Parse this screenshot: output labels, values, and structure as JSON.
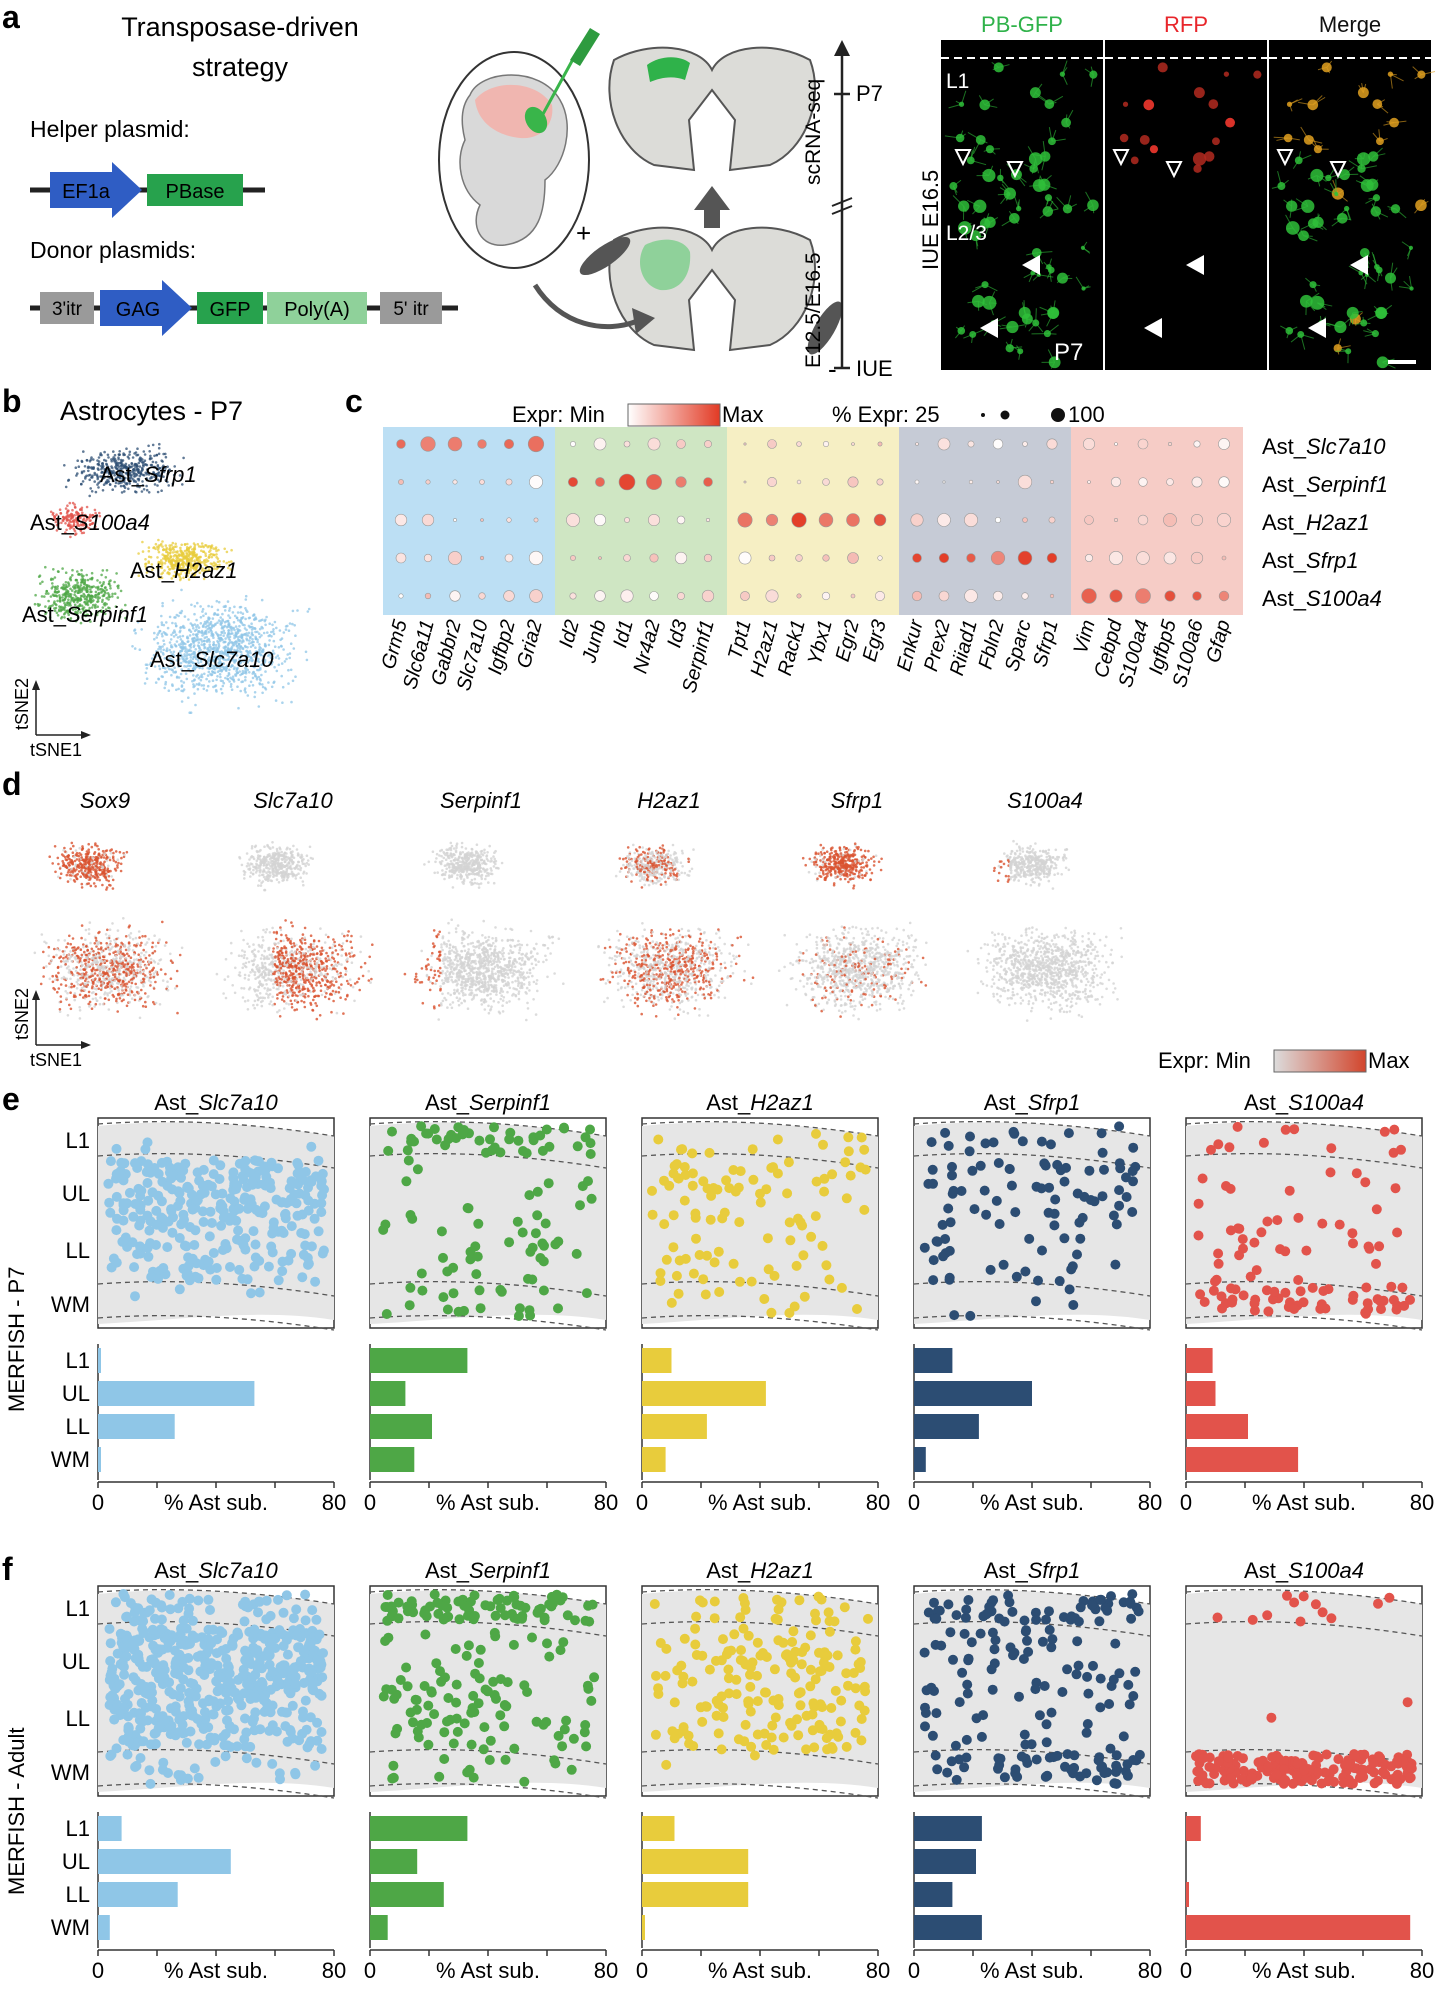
{
  "panel_letters": {
    "a": "a",
    "b": "b",
    "c": "c",
    "d": "d",
    "e": "e",
    "f": "f"
  },
  "panel_a": {
    "title_line1": "Transposase-driven",
    "title_line2": "strategy",
    "helper_label": "Helper plasmid:",
    "donor_label": "Donor plasmids:",
    "helper_parts": [
      "EF1a",
      "PBase"
    ],
    "donor_parts": [
      "3'itr",
      "GAG",
      "GFP",
      "Poly(A)",
      "5' itr"
    ],
    "timeline": {
      "top": "P7",
      "bottom": "IUE",
      "upper_label": "scRNA-seq",
      "lower_label": "E12.5/E16.5"
    },
    "electrode_plus": "+",
    "electrode_minus": "-",
    "micro_titles": [
      {
        "text": "PB-GFP",
        "color": "#2fb24a"
      },
      {
        "text": "RFP",
        "color": "#e8262b"
      },
      {
        "text": "Merge",
        "color": "#111111"
      }
    ],
    "micro_side_label": "IUE E16.5",
    "micro_layers": [
      "L1",
      "L2/3"
    ],
    "micro_age": "P7"
  },
  "panel_b": {
    "title": "Astrocytes - P7",
    "axis_x": "tSNE1",
    "axis_y": "tSNE2",
    "clusters": [
      {
        "prefix": "Ast_",
        "gene": "Sfrp1",
        "color": "#2c4d73"
      },
      {
        "prefix": "Ast_",
        "gene": "S100a4",
        "color": "#e2534b"
      },
      {
        "prefix": "Ast_",
        "gene": "H2az1",
        "color": "#e8cc3c"
      },
      {
        "prefix": "Ast_",
        "gene": "Serpinf1",
        "color": "#4ea746"
      },
      {
        "prefix": "Ast_",
        "gene": "Slc7a10",
        "color": "#8fc6e7"
      }
    ]
  },
  "panel_c": {
    "expr_label": "Expr: Min",
    "expr_max": "Max",
    "pct_label": "% Expr: 25",
    "pct_max": "100",
    "row_labels": [
      {
        "prefix": "Ast_",
        "gene": "Slc7a10"
      },
      {
        "prefix": "Ast_",
        "gene": "Serpinf1"
      },
      {
        "prefix": "Ast_",
        "gene": "H2az1"
      },
      {
        "prefix": "Ast_",
        "gene": "Sfrp1"
      },
      {
        "prefix": "Ast_",
        "gene": "S100a4"
      }
    ],
    "block_colors": [
      "#bcdff4",
      "#cfe6c3",
      "#f6efc4",
      "#c6cbd6",
      "#f6ccc6"
    ],
    "gene_blocks": [
      [
        "Grm5",
        "Slc6a11",
        "Gabbr2",
        "Slc7a10",
        "Igfbp2",
        "Gria2"
      ],
      [
        "Id2",
        "Junb",
        "Id1",
        "Nr4a2",
        "Id3",
        "Serpinf1"
      ],
      [
        "Tpt1",
        "H2az1",
        "Rack1",
        "Ybx1",
        "Egr2",
        "Egr3"
      ],
      [
        "Enkur",
        "Prex2",
        "Riiad1",
        "Fbln2",
        "Sparc",
        "Sfrp1"
      ],
      [
        "Vim",
        "Cebpd",
        "S100a4",
        "Igfbp5",
        "S100a6",
        "Gfap"
      ]
    ]
  },
  "panel_d": {
    "genes": [
      "Sox9",
      "Slc7a10",
      "Serpinf1",
      "H2az1",
      "Sfrp1",
      "S100a4"
    ],
    "axis_x": "tSNE1",
    "axis_y": "tSNE2",
    "legend_min": "Expr: Min",
    "legend_max": "Max"
  },
  "panel_e": {
    "side_label": "MERFISH - P7",
    "layers": [
      "L1",
      "UL",
      "LL",
      "WM"
    ],
    "xlabel": "% Ast sub.",
    "tick_min": "0",
    "tick_max": "80",
    "subtypes": [
      {
        "prefix": "Ast_",
        "gene": "Slc7a10",
        "color": "#8fc6e7",
        "pct": [
          1,
          53,
          26,
          1
        ]
      },
      {
        "prefix": "Ast_",
        "gene": "Serpinf1",
        "color": "#4ea746",
        "pct": [
          33,
          12,
          21,
          15
        ]
      },
      {
        "prefix": "Ast_",
        "gene": "H2az1",
        "color": "#e8cc3c",
        "pct": [
          10,
          42,
          22,
          8
        ]
      },
      {
        "prefix": "Ast_",
        "gene": "Sfrp1",
        "color": "#2c4d73",
        "pct": [
          13,
          40,
          22,
          4
        ]
      },
      {
        "prefix": "Ast_",
        "gene": "S100a4",
        "color": "#e2534b",
        "pct": [
          9,
          10,
          21,
          38
        ]
      }
    ]
  },
  "panel_f": {
    "side_label": "MERFISH - Adult",
    "layers": [
      "L1",
      "UL",
      "LL",
      "WM"
    ],
    "xlabel": "% Ast sub.",
    "tick_min": "0",
    "tick_max": "80",
    "subtypes": [
      {
        "prefix": "Ast_",
        "gene": "Slc7a10",
        "color": "#8fc6e7",
        "pct": [
          8,
          45,
          27,
          4
        ]
      },
      {
        "prefix": "Ast_",
        "gene": "Serpinf1",
        "color": "#4ea746",
        "pct": [
          33,
          16,
          25,
          6
        ]
      },
      {
        "prefix": "Ast_",
        "gene": "H2az1",
        "color": "#e8cc3c",
        "pct": [
          11,
          36,
          36,
          1
        ]
      },
      {
        "prefix": "Ast_",
        "gene": "Sfrp1",
        "color": "#2c4d73",
        "pct": [
          23,
          21,
          13,
          23
        ]
      },
      {
        "prefix": "Ast_",
        "gene": "S100a4",
        "color": "#e2534b",
        "pct": [
          5,
          0,
          1,
          76
        ]
      }
    ]
  }
}
